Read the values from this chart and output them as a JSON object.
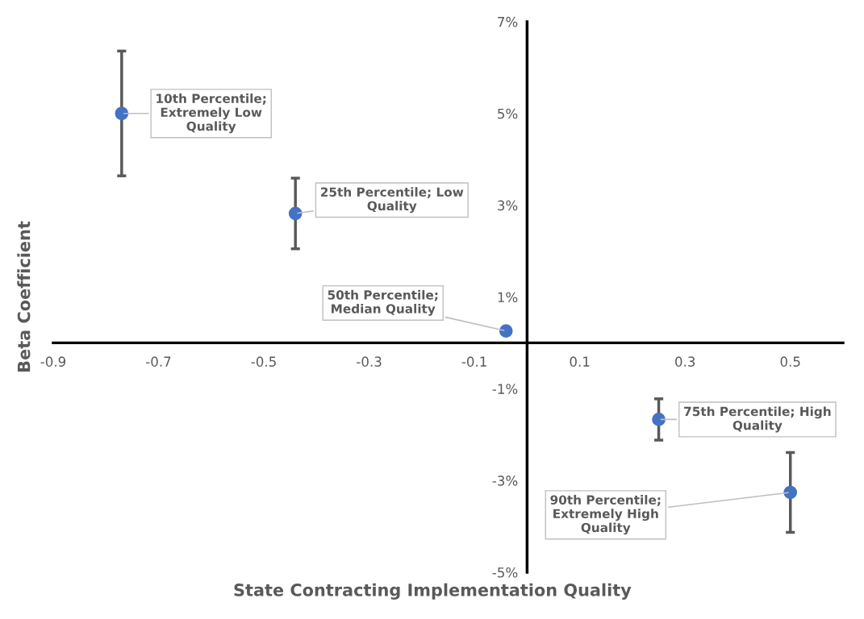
{
  "chart_data": {
    "type": "scatter",
    "xlabel": "State Contracting Implementation Quality",
    "ylabel": "Beta Coefficient",
    "x": [
      -0.77,
      -0.44,
      -0.04,
      0.25,
      0.5
    ],
    "series": [
      {
        "color": "#4472c4",
        "values": [
          5.0,
          2.82,
          0.26,
          -1.67,
          -3.26
        ],
        "errors": [
          1.36,
          0.77,
          null,
          0.45,
          0.87
        ]
      }
    ],
    "annotations": [
      {
        "text": "10th Percentile;\nExtremely Low\nQuality",
        "x": -0.77,
        "y": 5.0
      },
      {
        "text": "25th Percentile; Low\nQuality",
        "x": -0.44,
        "y": 2.82
      },
      {
        "text": "50th Percentile;\nMedian Quality",
        "x": -0.04,
        "y": 0.26
      },
      {
        "text": "75th Percentile; High\nQuality",
        "x": 0.25,
        "y": -1.67
      },
      {
        "text": "90th Percentile;\nExtremely High\nQuality",
        "x": 0.5,
        "y": -3.26
      }
    ],
    "xlim": [
      -0.9,
      0.6
    ],
    "xticks": [
      -0.9,
      -0.7,
      -0.5,
      -0.3,
      -0.1,
      0.1,
      0.3,
      0.5
    ],
    "ylim": [
      -5,
      7
    ],
    "yticks": [
      {
        "value": 7,
        "label": "7%"
      },
      {
        "value": 5,
        "label": "5%"
      },
      {
        "value": 3,
        "label": "3%"
      },
      {
        "value": 1,
        "label": "1%"
      },
      {
        "value": -1,
        "label": "-1%"
      },
      {
        "value": -3,
        "label": "-3%"
      },
      {
        "value": -5,
        "label": "-5%"
      }
    ],
    "marker": "circle",
    "grid": false,
    "legend": false
  }
}
